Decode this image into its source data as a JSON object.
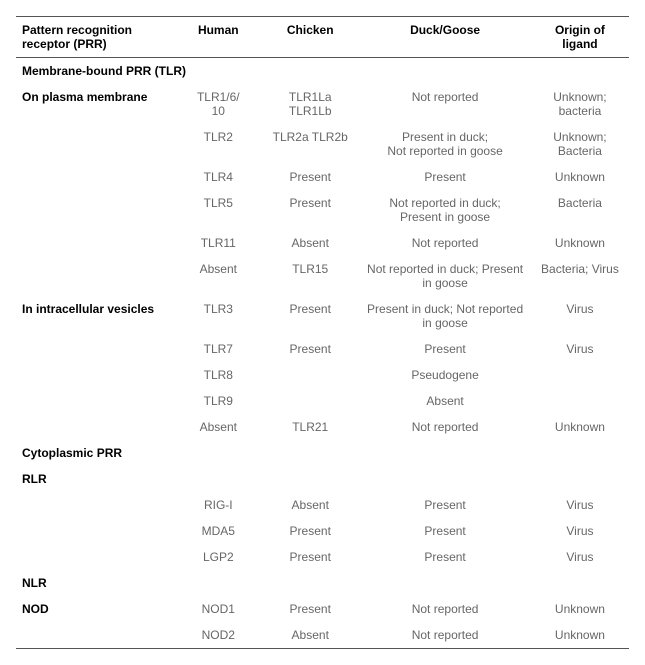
{
  "columns": {
    "c1": "Pattern recognition receptor (PRR)",
    "c2": "Human",
    "c3": "Chicken",
    "c4": "Duck/Goose",
    "c5": "Origin of ligand"
  },
  "sections": {
    "membrane": "Membrane-bound PRR (TLR)",
    "plasma": "On plasma membrane",
    "vesicles": "In intracellular vesicles",
    "cytoplasmic": "Cytoplasmic PRR",
    "rlr": "RLR",
    "nlr": "NLR",
    "nod": "NOD"
  },
  "rows": {
    "r1": {
      "human_a": "TLR1/6/",
      "human_b": "10",
      "chicken_a": "TLR1La",
      "chicken_b": "TLR1Lb",
      "duck": "Not reported",
      "origin_a": "Unknown;",
      "origin_b": "bacteria"
    },
    "r2": {
      "human": "TLR2",
      "chicken": "TLR2a TLR2b",
      "duck_a": "Present in duck;",
      "duck_b": "Not reported in goose",
      "origin_a": "Unknown;",
      "origin_b": "Bacteria"
    },
    "r3": {
      "human": "TLR4",
      "chicken": "Present",
      "duck": "Present",
      "origin": "Unknown"
    },
    "r4": {
      "human": "TLR5",
      "chicken": "Present",
      "duck_a": "Not reported in duck;",
      "duck_b": "Present in goose",
      "origin": "Bacteria"
    },
    "r5": {
      "human": "TLR11",
      "chicken": "Absent",
      "duck": "Not reported",
      "origin": "Unknown"
    },
    "r6": {
      "human": "Absent",
      "chicken": "TLR15",
      "duck": "Not reported in duck; Present in goose",
      "origin": "Bacteria; Virus"
    },
    "r7": {
      "human": "TLR3",
      "chicken": "Present",
      "duck": "Present in duck; Not reported in goose",
      "origin": "Virus"
    },
    "r8": {
      "human": "TLR7",
      "chicken": "Present",
      "duck": "Present",
      "origin": "Virus"
    },
    "r9": {
      "human": "TLR8",
      "chicken": "",
      "duck": "Pseudogene",
      "origin": ""
    },
    "r10": {
      "human": "TLR9",
      "chicken": "",
      "duck": "Absent",
      "origin": ""
    },
    "r11": {
      "human": "Absent",
      "chicken": "TLR21",
      "duck": "Not reported",
      "origin": "Unknown"
    },
    "r12": {
      "human": "RIG-I",
      "chicken": "Absent",
      "duck": "Present",
      "origin": "Virus"
    },
    "r13": {
      "human": "MDA5",
      "chicken": "Present",
      "duck": "Present",
      "origin": "Virus"
    },
    "r14": {
      "human": "LGP2",
      "chicken": "Present",
      "duck": "Present",
      "origin": "Virus"
    },
    "r15": {
      "human": "NOD1",
      "chicken": "Present",
      "duck": "Not reported",
      "origin": "Unknown"
    },
    "r16": {
      "human": "NOD2",
      "chicken": "Absent",
      "duck": "Not reported",
      "origin": "Unknown"
    }
  },
  "style": {
    "font_size_pt": 12,
    "header_color": "#000000",
    "data_color": "#666666",
    "border_color": "#555555",
    "background": "#ffffff"
  }
}
